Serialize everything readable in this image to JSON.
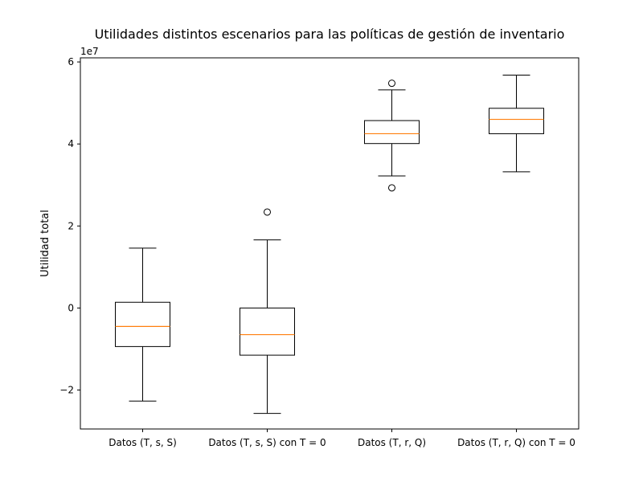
{
  "chart_data": {
    "type": "box",
    "title": "Utilidades distintos escenarios para las políticas de gestión de inventario",
    "xlabel": "",
    "ylabel": "Utilidad total",
    "offset_label": "1e7",
    "y_scale": 10000000,
    "ylim": [
      -2.95,
      6.1
    ],
    "yticks": [
      -2,
      0,
      2,
      4,
      6
    ],
    "ytick_labels": [
      "−2",
      "0",
      "2",
      "4",
      "6"
    ],
    "grid": false,
    "categories": [
      "Datos (T, s, S)",
      "Datos (T, s, S) con T = 0",
      "Datos (T, r, Q)",
      "Datos (T, r, Q) con T = 0"
    ],
    "boxes": [
      {
        "whisker_low": -2.27,
        "q1": -0.94,
        "median": -0.45,
        "q3": 0.14,
        "whisker_high": 1.46,
        "outliers": []
      },
      {
        "whisker_low": -2.57,
        "q1": -1.15,
        "median": -0.65,
        "q3": 0.0,
        "whisker_high": 1.66,
        "outliers": [
          2.34
        ]
      },
      {
        "whisker_low": 3.22,
        "q1": 4.01,
        "median": 4.25,
        "q3": 4.57,
        "whisker_high": 5.32,
        "outliers": [
          5.48,
          2.93
        ]
      },
      {
        "whisker_low": 3.32,
        "q1": 4.25,
        "median": 4.6,
        "q3": 4.87,
        "whisker_high": 5.68,
        "outliers": []
      }
    ],
    "colors": {
      "box": "#000000",
      "median": "#ff7f0e",
      "background": "#ffffff"
    }
  }
}
